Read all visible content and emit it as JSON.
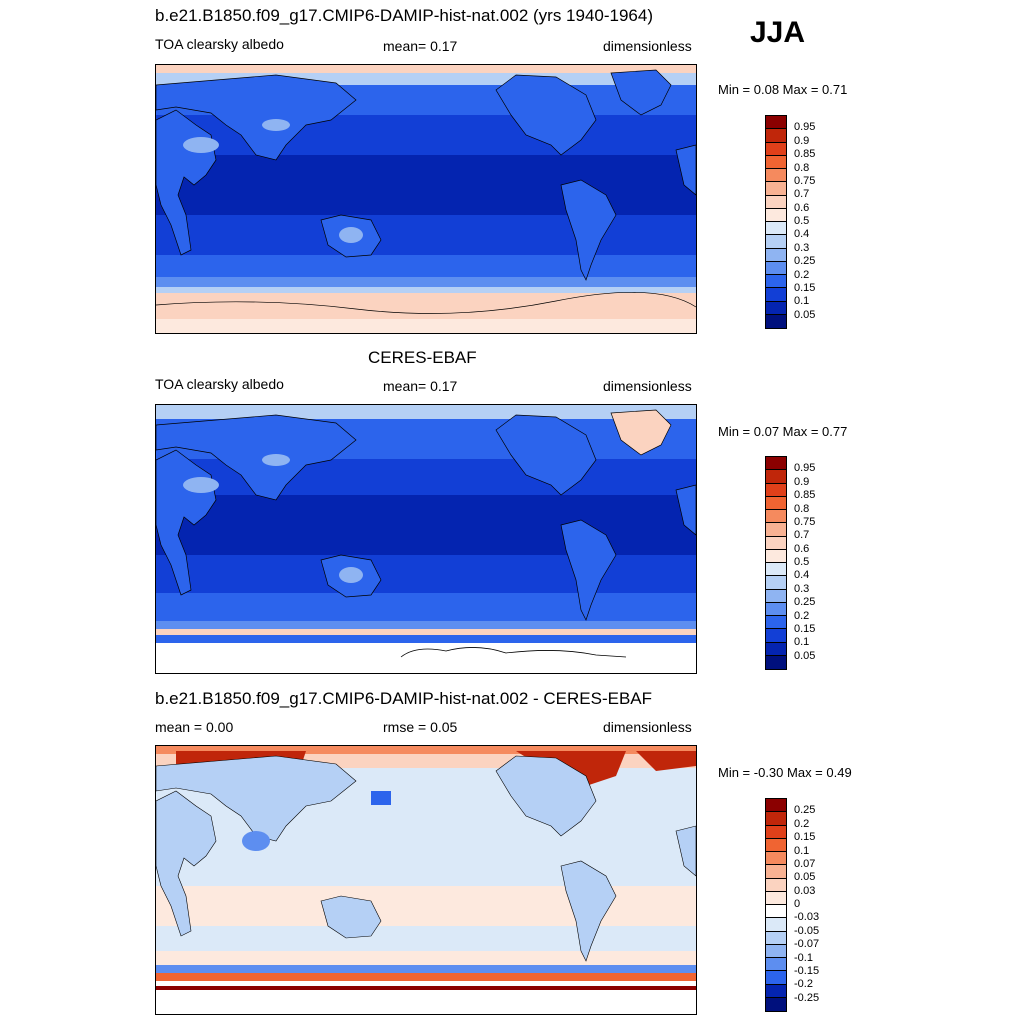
{
  "season": "JJA",
  "panels": [
    {
      "title": "b.e21.B1850.f09_g17.CMIP6-DAMIP-hist-nat.002 (yrs 1940-1964)",
      "left_label": "TOA clearsky albedo",
      "center_label": "mean=   0.17",
      "right_label": "dimensionless",
      "minmax": "Min =   0.08 Max =   0.71",
      "colorbar_labels": [
        "0.95",
        "0.9",
        "0.85",
        "0.8",
        "0.75",
        "0.7",
        "0.6",
        "0.5",
        "0.4",
        "0.3",
        "0.25",
        "0.2",
        "0.15",
        "0.1",
        "0.05"
      ]
    },
    {
      "title": "CERES-EBAF",
      "left_label": "TOA clearsky albedo",
      "center_label": "mean=   0.17",
      "right_label": "dimensionless",
      "minmax": "Min =   0.07 Max =   0.77",
      "colorbar_labels": [
        "0.95",
        "0.9",
        "0.85",
        "0.8",
        "0.75",
        "0.7",
        "0.6",
        "0.5",
        "0.4",
        "0.3",
        "0.25",
        "0.2",
        "0.15",
        "0.1",
        "0.05"
      ]
    },
    {
      "title": "b.e21.B1850.f09_g17.CMIP6-DAMIP-hist-nat.002 - CERES-EBAF",
      "left_label": "mean =   0.00",
      "center_label": "rmse =   0.05",
      "right_label": "dimensionless",
      "minmax": "Min =  -0.30 Max =   0.49",
      "colorbar_labels": [
        "0.25",
        "0.2",
        "0.15",
        "0.1",
        "0.07",
        "0.05",
        "0.03",
        "0",
        "-0.03",
        "-0.05",
        "-0.07",
        "-0.1",
        "-0.15",
        "-0.2",
        "-0.25"
      ]
    }
  ],
  "colors": {
    "abs_scale": [
      "#8b0000",
      "#c0260a",
      "#e0401a",
      "#f06432",
      "#f58a5e",
      "#f8b293",
      "#fbd3c0",
      "#fde9de",
      "#dbe9f8",
      "#b5d0f5",
      "#8fb4f2",
      "#5d8ef0",
      "#2c64ec",
      "#123fd6",
      "#0424b0",
      "#00107d"
    ],
    "diff_scale": [
      "#8b0000",
      "#c0260a",
      "#e0401a",
      "#f06432",
      "#f58a5e",
      "#f8b293",
      "#fbd3c0",
      "#fde9de",
      "#ffffff",
      "#dbe9f8",
      "#b5d0f5",
      "#8fb4f2",
      "#5d8ef0",
      "#2c64ec",
      "#0424b0",
      "#00107d"
    ]
  }
}
